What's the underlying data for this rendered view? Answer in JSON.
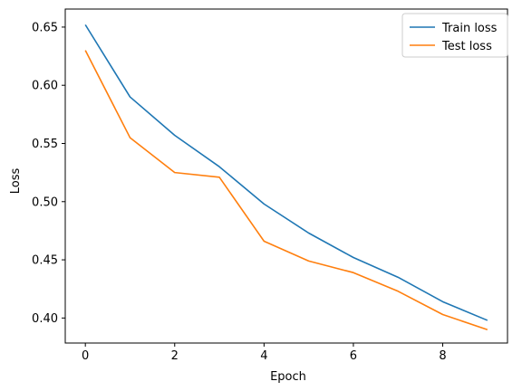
{
  "chart_data": {
    "type": "line",
    "title": "",
    "xlabel": "Epoch",
    "ylabel": "Loss",
    "x": [
      0,
      1,
      2,
      3,
      4,
      5,
      6,
      7,
      8,
      9
    ],
    "xlim": [
      -0.45,
      9.45
    ],
    "ylim": [
      0.3785,
      0.6655
    ],
    "xticks": [
      0,
      2,
      4,
      6,
      8
    ],
    "xtick_labels": [
      "0",
      "2",
      "4",
      "6",
      "8"
    ],
    "yticks": [
      0.4,
      0.45,
      0.5,
      0.55,
      0.6,
      0.65
    ],
    "ytick_labels": [
      "0.40",
      "0.45",
      "0.50",
      "0.55",
      "0.60",
      "0.65"
    ],
    "grid": false,
    "legend_position": "top-right",
    "series": [
      {
        "name": "Train loss",
        "color": "#1f77b4",
        "values": [
          0.652,
          0.59,
          0.557,
          0.53,
          0.498,
          0.473,
          0.452,
          0.435,
          0.414,
          0.398
        ]
      },
      {
        "name": "Test loss",
        "color": "#ff7f0e",
        "values": [
          0.63,
          0.555,
          0.525,
          0.521,
          0.466,
          0.449,
          0.439,
          0.423,
          0.403,
          0.39
        ]
      }
    ]
  }
}
